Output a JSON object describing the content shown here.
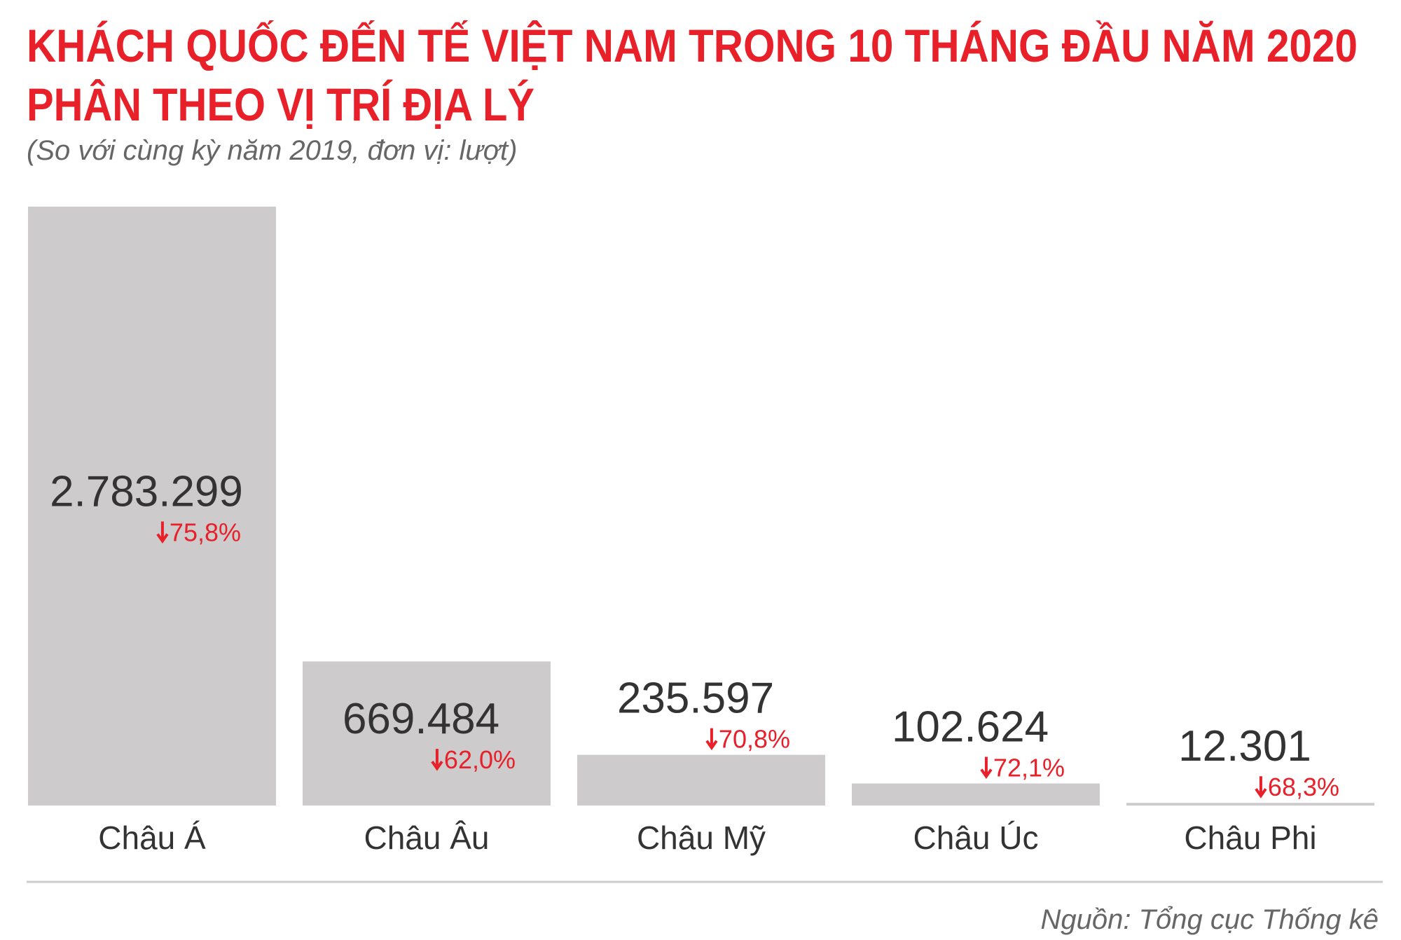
{
  "chart_data": {
    "type": "bar",
    "title": [
      "KHÁCH QUỐC ĐẾN TẾ VIỆT NAM TRONG 10 THÁNG ĐẦU NĂM 2020",
      "PHÂN THEO VỊ TRÍ ĐỊA LÝ"
    ],
    "subtitle": "(So với cùng kỳ năm 2019, đơn vị: lượt)",
    "categories": [
      "Châu Á",
      "Châu Âu",
      "Châu Mỹ",
      "Châu Úc",
      "Châu Phi"
    ],
    "values": [
      2783299,
      669484,
      235597,
      102624,
      12301
    ],
    "value_labels": [
      "2.783.299",
      "669.484",
      "235.597",
      "102.624",
      "12.301"
    ],
    "changes": [
      {
        "value": -75.8,
        "label": "75,8%"
      },
      {
        "value": -62.0,
        "label": "62,0%"
      },
      {
        "value": -70.8,
        "label": "70,8%"
      },
      {
        "value": -72.1,
        "label": "72,1%"
      },
      {
        "value": -68.3,
        "label": "68,3%"
      }
    ],
    "color": "#cdcbcc",
    "change_color": "#e8202a",
    "source": "Nguồn: Tổng cục Thống kê"
  }
}
